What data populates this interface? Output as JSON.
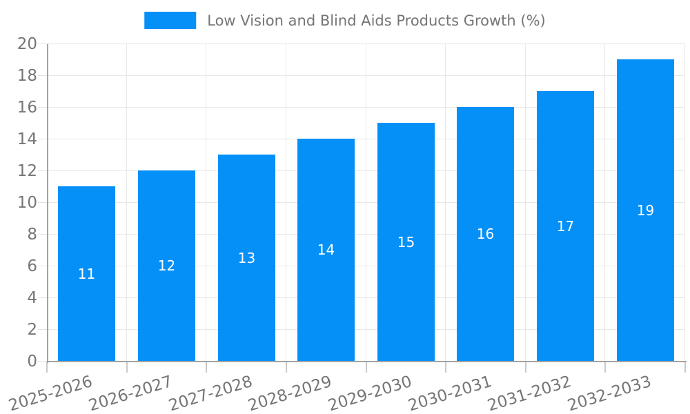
{
  "legend": {
    "label": "Low Vision and Blind Aids Products Growth (%)"
  },
  "chart_data": {
    "type": "bar",
    "title": "Low Vision and Blind Aids Products Growth (%)",
    "categories": [
      "2025-2026",
      "2026-2027",
      "2027-2028",
      "2028-2029",
      "2029-2030",
      "2030-2031",
      "2031-2032",
      "2032-2033"
    ],
    "values": [
      11,
      12,
      13,
      14,
      15,
      16,
      17,
      19
    ],
    "xlabel": "",
    "ylabel": "",
    "ylim": [
      0,
      20
    ],
    "ytick_step": 2,
    "ytick_labels": [
      "0",
      "2",
      "4",
      "6",
      "8",
      "10",
      "12",
      "14",
      "16",
      "18",
      "20"
    ],
    "grid": true,
    "legend_position": "top-center",
    "bar_label_position": "inside-center",
    "xtick_rotation_deg": -17,
    "colors": {
      "bar": "#0590f8",
      "bar_label": "#ffffff",
      "axis_text": "#757575",
      "axis_line": "#a3a3a3",
      "gridline": "#e8e8e8",
      "y_tick": "#e3e3e3",
      "x_tick": "#c9c9c9",
      "background": "#ffffff"
    }
  }
}
